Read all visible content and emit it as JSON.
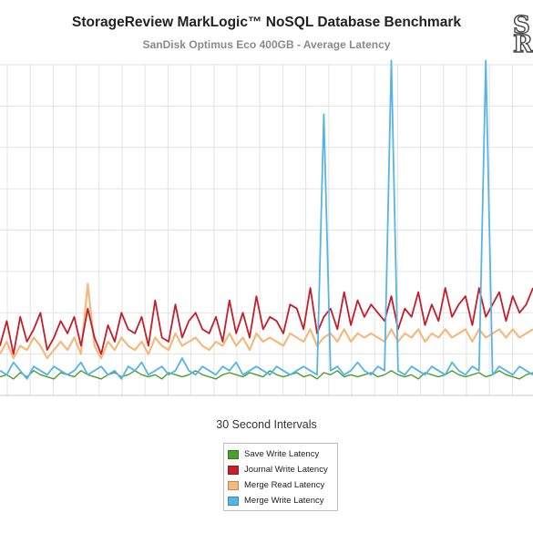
{
  "header": {
    "title": "StorageReview MarkLogic™ NoSQL Database Benchmark",
    "subtitle": "SanDisk Optimus Eco 400GB - Average Latency"
  },
  "logo": {
    "letters": [
      "S",
      "R"
    ]
  },
  "chart_data": {
    "type": "line",
    "title": "StorageReview MarkLogic™ NoSQL Database Benchmark",
    "subtitle": "SanDisk Optimus Eco 400GB - Average Latency",
    "xlabel": "30 Second Intervals",
    "ylabel": "",
    "grid": true,
    "legend_position": "bottom-center",
    "colors": {
      "save_write": "#4aa02c",
      "journal_write": "#c41e2a",
      "merge_read": "#f4b97c",
      "merge_write": "#56b4e9",
      "grid": "#e3e3e3"
    },
    "y_range": [
      0,
      8
    ],
    "y_grid_step": 1,
    "x_grid_count": 23,
    "series": [
      {
        "name": "Save Write Latency",
        "key": "save_write",
        "values": [
          0.45,
          0.5,
          0.4,
          0.55,
          0.45,
          0.6,
          0.5,
          0.45,
          0.4,
          0.55,
          0.5,
          0.45,
          0.6,
          0.5,
          0.45,
          0.4,
          0.5,
          0.55,
          0.45,
          0.5,
          0.6,
          0.5,
          0.45,
          0.5,
          0.4,
          0.55,
          0.5,
          0.45,
          0.5,
          0.6,
          0.5,
          0.45,
          0.4,
          0.5,
          0.55,
          0.5,
          0.45,
          0.55,
          0.5,
          0.45,
          0.6,
          0.5,
          0.45,
          0.5,
          0.55,
          0.45,
          0.5,
          0.4,
          0.55,
          0.5,
          0.6,
          0.45,
          0.5,
          0.45,
          0.5,
          0.55,
          0.45,
          0.5,
          0.6,
          0.5,
          0.45,
          0.5,
          0.4,
          0.55,
          0.5,
          0.45,
          0.5,
          0.6,
          0.5,
          0.45,
          0.5,
          0.55,
          0.45,
          0.5,
          0.6,
          0.5,
          0.45,
          0.4,
          0.5,
          0.55
        ]
      },
      {
        "name": "Journal Write Latency",
        "key": "journal_write",
        "values": [
          1.2,
          1.8,
          1.0,
          1.9,
          1.3,
          1.6,
          2.0,
          1.1,
          1.4,
          1.8,
          1.5,
          1.9,
          1.2,
          2.1,
          1.4,
          1.0,
          1.7,
          1.3,
          2.0,
          1.6,
          1.5,
          1.9,
          1.2,
          2.3,
          1.4,
          1.3,
          2.2,
          1.4,
          1.8,
          2.0,
          1.6,
          1.5,
          1.9,
          1.3,
          2.3,
          1.5,
          2.0,
          1.4,
          2.4,
          1.6,
          1.9,
          1.8,
          1.5,
          2.2,
          2.1,
          1.6,
          2.6,
          1.5,
          1.9,
          2.1,
          1.6,
          2.5,
          1.7,
          2.3,
          1.9,
          2.2,
          2.0,
          1.8,
          2.4,
          1.6,
          2.1,
          1.9,
          2.5,
          1.7,
          2.2,
          1.8,
          2.6,
          1.9,
          2.2,
          2.4,
          1.7,
          2.6,
          1.9,
          2.2,
          2.5,
          1.8,
          2.4,
          2.0,
          2.2,
          2.6
        ]
      },
      {
        "name": "Merge Read Latency",
        "key": "merge_read",
        "values": [
          1.0,
          1.3,
          0.9,
          1.2,
          1.1,
          1.4,
          1.2,
          0.9,
          1.1,
          1.3,
          1.1,
          1.4,
          1.0,
          2.7,
          1.2,
          0.9,
          1.3,
          1.1,
          1.4,
          1.2,
          1.1,
          1.3,
          1.0,
          1.4,
          1.2,
          1.1,
          1.5,
          1.2,
          1.3,
          1.4,
          1.2,
          1.1,
          1.3,
          1.2,
          1.5,
          1.2,
          1.4,
          1.1,
          1.5,
          1.3,
          1.4,
          1.3,
          1.2,
          1.5,
          1.4,
          1.3,
          1.6,
          1.2,
          1.4,
          1.5,
          1.3,
          1.6,
          1.3,
          1.5,
          1.4,
          1.5,
          1.4,
          1.3,
          1.6,
          1.3,
          1.5,
          1.4,
          1.6,
          1.3,
          1.5,
          1.4,
          1.6,
          1.4,
          1.5,
          1.6,
          1.3,
          1.6,
          1.4,
          1.5,
          1.6,
          1.4,
          1.6,
          1.4,
          1.5,
          1.6
        ]
      },
      {
        "name": "Merge Write Latency",
        "key": "merge_write",
        "values": [
          0.6,
          0.5,
          0.8,
          0.6,
          0.4,
          0.7,
          0.6,
          0.5,
          0.7,
          0.6,
          0.5,
          0.6,
          0.8,
          0.5,
          0.6,
          0.7,
          0.5,
          0.6,
          0.4,
          0.7,
          0.6,
          0.8,
          0.5,
          0.6,
          0.7,
          0.5,
          0.6,
          0.9,
          0.6,
          0.5,
          0.7,
          0.6,
          0.5,
          0.7,
          0.6,
          0.8,
          0.5,
          0.6,
          0.7,
          0.6,
          0.5,
          0.7,
          0.6,
          0.5,
          0.6,
          0.7,
          0.6,
          0.5,
          6.8,
          0.6,
          0.7,
          0.5,
          0.6,
          0.8,
          0.6,
          0.5,
          0.7,
          0.6,
          8.1,
          0.6,
          0.5,
          0.7,
          0.6,
          0.5,
          0.7,
          0.6,
          0.5,
          0.8,
          0.6,
          0.5,
          0.7,
          0.6,
          8.1,
          0.5,
          0.7,
          0.6,
          0.5,
          0.7,
          0.6,
          0.5
        ]
      }
    ]
  },
  "legend": {
    "items": [
      {
        "label": "Save Write Latency",
        "key": "save_write"
      },
      {
        "label": "Journal Write Latency",
        "key": "journal_write"
      },
      {
        "label": "Merge Read Latency",
        "key": "merge_read"
      },
      {
        "label": "Merge Write Latency",
        "key": "merge_write"
      }
    ]
  }
}
